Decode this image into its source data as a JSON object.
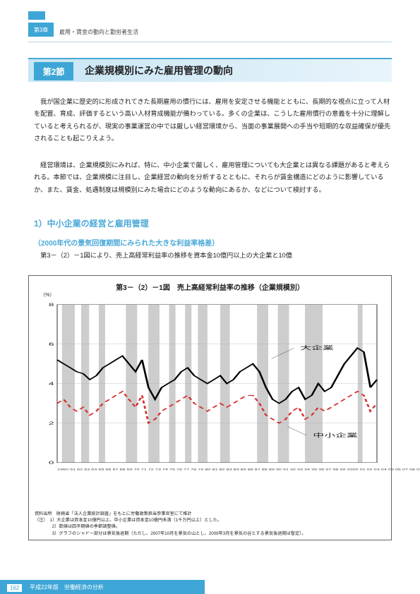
{
  "chapter": {
    "tab": "第3章",
    "label": "雇用・賃金の動向と勤労者生活"
  },
  "section": {
    "tab": "第2節",
    "title": "企業規模別にみた雇用管理の動向"
  },
  "paragraphs": {
    "p1": "　我が国企業に歴史的に形成されてきた長期雇用の慣行には、雇用を安定させる機能とともに、長期的な視点に立って人材を配置、育成、評価するという高い人材育成機能が備わっている。多くの企業は、こうした雇用慣行の意義を十分に理解していると考えられるが、現実の事業運営の中では厳しい経営環境から、当面の事業展開への手当や短期的な収益確保が優先されることも起こりえよう。",
    "p2": "　経営環境は、企業規模別にみれば、特に、中小企業で厳しく、雇用管理についても大企業とは異なる課題があると考えられる。本節では、企業規模に注目し、企業経営の動向を分析するとともに、それらが賃金構造にどのように影響しているか、また、賃金、処遇制度は規模別にみた場合にどのような動向にあるか、などについて検討する。",
    "p3": "　第3－（2）－1図により、売上高経常利益率の推移を資本金10億円以上の大企業と10億"
  },
  "headings": {
    "h1": "1）中小企業の経営と雇用管理",
    "h2": "（2000年代の景気回復期間にみられた大きな利益率格差）"
  },
  "chart": {
    "title": "第3－（2）－1図　売上高経常利益率の推移（企業規模別）",
    "ylabel": "（%）",
    "ylim": [
      0,
      8
    ],
    "ytick_step": 2,
    "xlabels": "1960 61 62 63 64 65 66 67 68 69 70 71 72 73 74 75 76 77 78 79 80 81 82 83 84 85 86 87 88 89 90 91 92 93 94 95 96 97 98 99 2000 01 02 03 04 05 06 07 08 09（年）",
    "bg": "#ffffff",
    "grid_color": "#b0b0b0",
    "shade_color": "#b8b8b8",
    "shades": [
      [
        3,
        11
      ],
      [
        15,
        20
      ],
      [
        26,
        30
      ],
      [
        43,
        50
      ],
      [
        57,
        64
      ],
      [
        70,
        74
      ],
      [
        80,
        84
      ],
      [
        88,
        94
      ],
      [
        102,
        108
      ],
      [
        125,
        132
      ],
      [
        138,
        145
      ],
      [
        155,
        166
      ],
      [
        188,
        191
      ]
    ],
    "series": {
      "large": {
        "label": "大企業",
        "color": "#000000",
        "width": 1.2,
        "points": [
          5.2,
          5.0,
          4.8,
          4.6,
          4.5,
          4.2,
          4.4,
          4.8,
          5.0,
          5.2,
          5.4,
          5.0,
          4.6,
          5.2,
          3.8,
          3.2,
          3.8,
          4.0,
          4.2,
          4.6,
          4.8,
          4.4,
          4.2,
          4.0,
          4.2,
          4.4,
          4.0,
          4.2,
          4.6,
          4.8,
          5.0,
          4.6,
          3.8,
          3.2,
          3.0,
          3.2,
          3.6,
          3.8,
          3.2,
          3.4,
          4.0,
          3.6,
          3.8,
          4.4,
          5.0,
          5.4,
          5.8,
          5.6,
          3.8,
          4.2
        ]
      },
      "small": {
        "label": "中小企業",
        "color": "#d62e2e",
        "width": 1.2,
        "dash": "4,3",
        "points": [
          3.0,
          3.2,
          2.8,
          2.6,
          2.8,
          2.4,
          2.6,
          3.0,
          3.2,
          3.4,
          3.6,
          3.2,
          2.8,
          3.4,
          2.0,
          2.2,
          2.6,
          2.8,
          3.0,
          3.2,
          3.4,
          3.0,
          2.8,
          2.6,
          2.8,
          3.0,
          2.8,
          3.0,
          3.2,
          3.4,
          3.4,
          3.0,
          2.4,
          2.2,
          2.0,
          2.2,
          2.6,
          2.8,
          2.2,
          2.4,
          2.8,
          2.6,
          2.8,
          3.0,
          3.2,
          3.4,
          3.6,
          3.4,
          2.6,
          3.0
        ]
      }
    },
    "label_pos": {
      "large": [
        152,
        70
      ],
      "small": [
        160,
        186
      ]
    },
    "notes_source": "資料出所　財務省「法人企業統計調査」をもとに労働政策担当参事官室にて推計",
    "notes": [
      "（注）　1）大企業は資本金10億円以上、中小企業は資本金10億円未満（1千万円以上）とした。",
      "　　　　2）数値は四半期値の季節調整値。",
      "　　　　3）グラフのシャドー部分は景気後退期（ただし、2007年10月を景気の山とし、2009年3月を景気の谷とする景気後退期は暫定）。"
    ]
  },
  "footer": {
    "page": "162",
    "text": "平成22年版　労働経済の分析"
  }
}
